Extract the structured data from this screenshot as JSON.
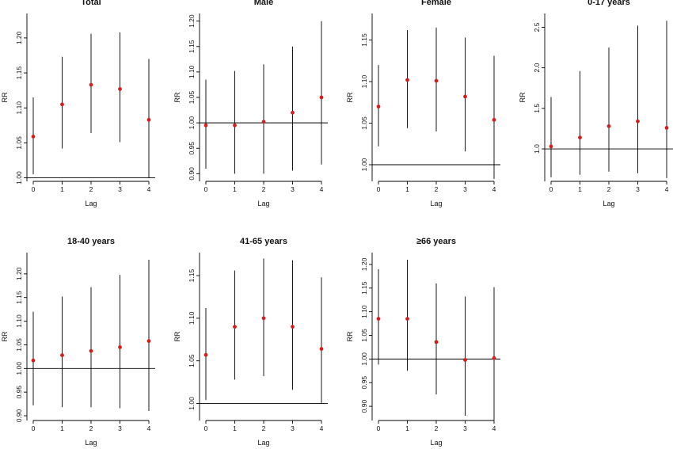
{
  "chart_data": [
    {
      "type": "scatter",
      "title": "Total",
      "xlabel": "Lag",
      "ylabel": "RR",
      "x": [
        0,
        1,
        2,
        3,
        4
      ],
      "yticks": [
        1.0,
        1.05,
        1.1,
        1.15,
        1.2
      ],
      "ytick_labels": [
        "1.00",
        "1.05",
        "1.10",
        "1.15",
        "1.20"
      ],
      "ylim": [
        0.995,
        1.235
      ],
      "reference_line": 1.0,
      "rr": [
        1.059,
        1.105,
        1.133,
        1.127,
        1.083
      ],
      "lower": [
        1.005,
        1.042,
        1.064,
        1.051,
        1.0
      ],
      "upper": [
        1.115,
        1.173,
        1.206,
        1.208,
        1.17
      ]
    },
    {
      "type": "scatter",
      "title": "Male",
      "xlabel": "Lag",
      "ylabel": "RR",
      "x": [
        0,
        1,
        2,
        3,
        4
      ],
      "yticks": [
        0.9,
        0.95,
        1.0,
        1.05,
        1.1,
        1.15,
        1.2
      ],
      "ytick_labels": [
        "0.90",
        "0.95",
        "1.00",
        "1.05",
        "1.10",
        "1.15",
        "1.20"
      ],
      "ylim": [
        0.885,
        1.215
      ],
      "reference_line": 1.0,
      "rr": [
        0.995,
        0.995,
        1.002,
        1.02,
        1.05
      ],
      "lower": [
        0.91,
        0.9,
        0.9,
        0.906,
        0.918
      ],
      "upper": [
        1.085,
        1.102,
        1.115,
        1.15,
        1.2
      ]
    },
    {
      "type": "scatter",
      "title": "Female",
      "xlabel": "Lag",
      "ylabel": "RR",
      "x": [
        0,
        1,
        2,
        3,
        4
      ],
      "yticks": [
        1.0,
        1.05,
        1.1,
        1.15
      ],
      "ytick_labels": [
        "1.00",
        "1.05",
        "1.10",
        "1.15"
      ],
      "ylim": [
        0.98,
        1.182
      ],
      "reference_line": 1.0,
      "rr": [
        1.07,
        1.102,
        1.101,
        1.082,
        1.054
      ],
      "lower": [
        1.022,
        1.044,
        1.04,
        1.016,
        0.983
      ],
      "upper": [
        1.12,
        1.162,
        1.165,
        1.153,
        1.131
      ]
    },
    {
      "type": "scatter",
      "title": "0-17 years",
      "xlabel": "Lag",
      "ylabel": "RR",
      "x": [
        0,
        1,
        2,
        3,
        4
      ],
      "yticks": [
        1.0,
        1.5,
        2.0,
        2.5
      ],
      "ytick_labels": [
        "1.0",
        "1.5",
        "2.0",
        "2.5"
      ],
      "ylim": [
        0.6,
        2.67
      ],
      "reference_line": 1.0,
      "rr": [
        1.03,
        1.14,
        1.28,
        1.34,
        1.26
      ],
      "lower": [
        0.65,
        0.68,
        0.72,
        0.7,
        0.64
      ],
      "upper": [
        1.64,
        1.96,
        2.25,
        2.52,
        2.58
      ]
    },
    {
      "type": "scatter",
      "title": "18-40 years",
      "xlabel": "Lag",
      "ylabel": "RR",
      "x": [
        0,
        1,
        2,
        3,
        4
      ],
      "yticks": [
        0.9,
        0.95,
        1.0,
        1.05,
        1.1,
        1.15,
        1.2
      ],
      "ytick_labels": [
        "0.90",
        "0.95",
        "1.00",
        "1.05",
        "1.10",
        "1.15",
        "1.20"
      ],
      "ylim": [
        0.89,
        1.245
      ],
      "reference_line": 1.0,
      "rr": [
        1.017,
        1.028,
        1.037,
        1.045,
        1.058
      ],
      "lower": [
        0.922,
        0.918,
        0.918,
        0.916,
        0.91
      ],
      "upper": [
        1.12,
        1.152,
        1.172,
        1.198,
        1.23
      ]
    },
    {
      "type": "scatter",
      "title": "41-65 years",
      "xlabel": "Lag",
      "ylabel": "RR",
      "x": [
        0,
        1,
        2,
        3,
        4
      ],
      "yticks": [
        1.0,
        1.05,
        1.1,
        1.15
      ],
      "ytick_labels": [
        "1.00",
        "1.05",
        "1.10",
        "1.15"
      ],
      "ylim": [
        0.98,
        1.177
      ],
      "reference_line": 1.0,
      "rr": [
        1.057,
        1.09,
        1.1,
        1.09,
        1.064
      ],
      "lower": [
        1.004,
        1.028,
        1.032,
        1.016,
        1.0
      ],
      "upper": [
        1.112,
        1.156,
        1.17,
        1.168,
        1.148
      ]
    },
    {
      "type": "scatter",
      "title": "≥66 years",
      "xlabel": "Lag",
      "ylabel": "RR",
      "x": [
        0,
        1,
        2,
        3,
        4
      ],
      "yticks": [
        0.9,
        0.95,
        1.0,
        1.05,
        1.1,
        1.15,
        1.2
      ],
      "ytick_labels": [
        "0.90",
        "0.95",
        "1.00",
        "1.05",
        "1.10",
        "1.15",
        "1.20"
      ],
      "ylim": [
        0.87,
        1.225
      ],
      "reference_line": 1.0,
      "rr": [
        1.085,
        1.085,
        1.036,
        0.998,
        1.002
      ],
      "lower": [
        0.988,
        0.975,
        0.925,
        0.88,
        0.87
      ],
      "upper": [
        1.19,
        1.21,
        1.16,
        1.132,
        1.152
      ]
    }
  ]
}
